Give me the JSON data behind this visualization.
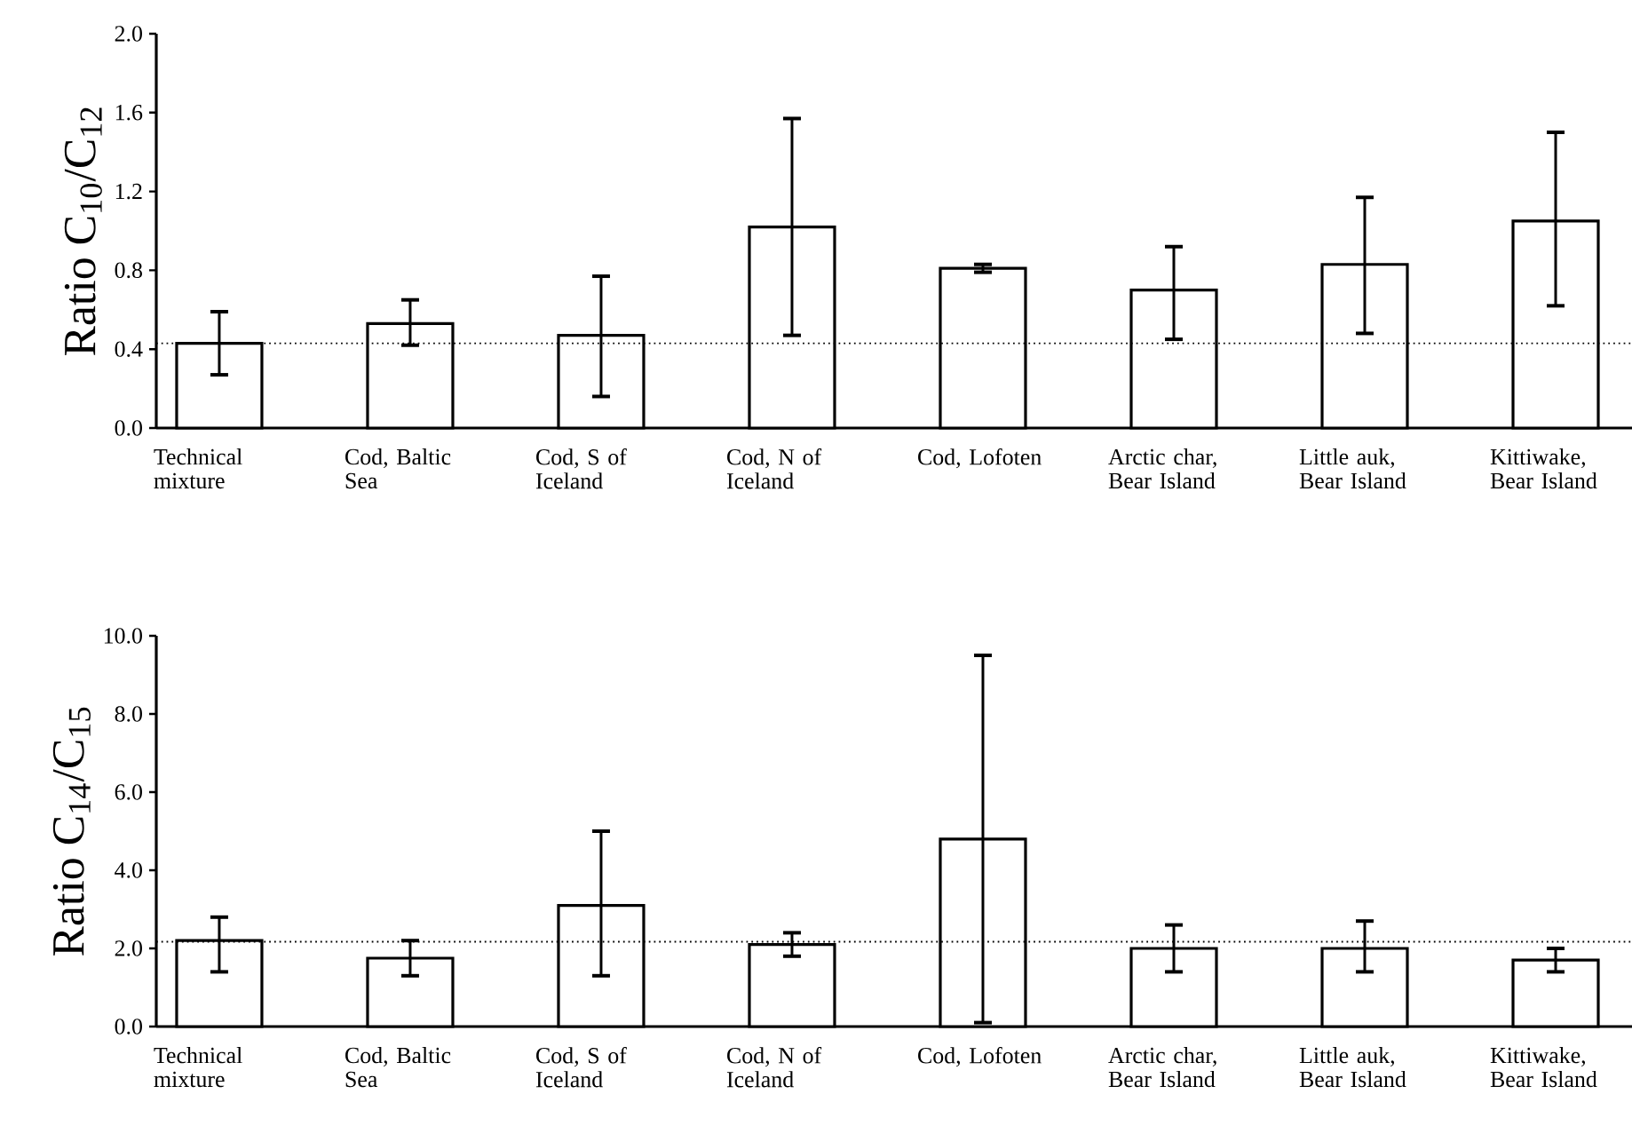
{
  "chart_data": [
    {
      "type": "bar",
      "ylabel": "Ratio C$_{10}$/C$_{12}$",
      "color": "#ffffff",
      "categories": [
        "Technical mixture",
        "Cod, Baltic Sea",
        "Cod, S of Iceland",
        "Cod, N of Iceland",
        "Cod, Lofoten",
        "Arctic char, Bear Island",
        "Little auk, Bear Island",
        "Kittiwake, Bear Island"
      ],
      "values": [
        0.43,
        0.53,
        0.47,
        1.02,
        0.81,
        0.7,
        0.83,
        1.05
      ],
      "errors": [
        [
          0.27,
          0.59
        ],
        [
          0.42,
          0.65
        ],
        [
          0.16,
          0.77
        ],
        [
          0.47,
          1.57
        ],
        [
          0.79,
          0.83
        ],
        [
          0.45,
          0.92
        ],
        [
          0.48,
          1.17
        ],
        [
          0.62,
          1.5
        ]
      ],
      "ylim": [
        0,
        2
      ],
      "yticks": [
        {
          "value": 0,
          "label": "0.0"
        },
        {
          "value": 0.4,
          "label": "0.4"
        },
        {
          "value": 0.8,
          "label": "0.8"
        },
        {
          "value": 1.2,
          "label": "1.2"
        },
        {
          "value": 1.6,
          "label": "1.6"
        },
        {
          "value": 2,
          "label": "2.0"
        }
      ],
      "ref_lines": [
        {
          "axis": "y",
          "value": 0.43,
          "line_style": "dotted"
        }
      ]
    },
    {
      "type": "bar",
      "ylabel": "Ratio C$_{14}$/C$_{15}$",
      "color": "#ffffff",
      "categories": [
        "Technical mixture",
        "Cod, Baltic Sea",
        "Cod, S of Iceland",
        "Cod, N of Iceland",
        "Cod, Lofoten",
        "Arctic char, Bear Island",
        "Little auk, Bear Island",
        "Kittiwake, Bear Island"
      ],
      "values": [
        2.2,
        1.75,
        3.1,
        2.1,
        4.8,
        2.0,
        2.0,
        1.7
      ],
      "errors": [
        [
          1.4,
          2.8
        ],
        [
          1.3,
          2.2
        ],
        [
          1.3,
          5.0
        ],
        [
          1.8,
          2.4
        ],
        [
          0.1,
          9.5
        ],
        [
          1.4,
          2.6
        ],
        [
          1.4,
          2.7
        ],
        [
          1.4,
          2.0
        ]
      ],
      "ylim": [
        0,
        10
      ],
      "yticks": [
        {
          "value": 0,
          "label": "0.0"
        },
        {
          "value": 2,
          "label": "2.0"
        },
        {
          "value": 4,
          "label": "4.0"
        },
        {
          "value": 6,
          "label": "6.0"
        },
        {
          "value": 8,
          "label": "8.0"
        },
        {
          "value": 10,
          "label": "10.0"
        }
      ],
      "ref_lines": [
        {
          "axis": "y",
          "value": 2.17,
          "line_style": "dotted"
        }
      ]
    }
  ]
}
